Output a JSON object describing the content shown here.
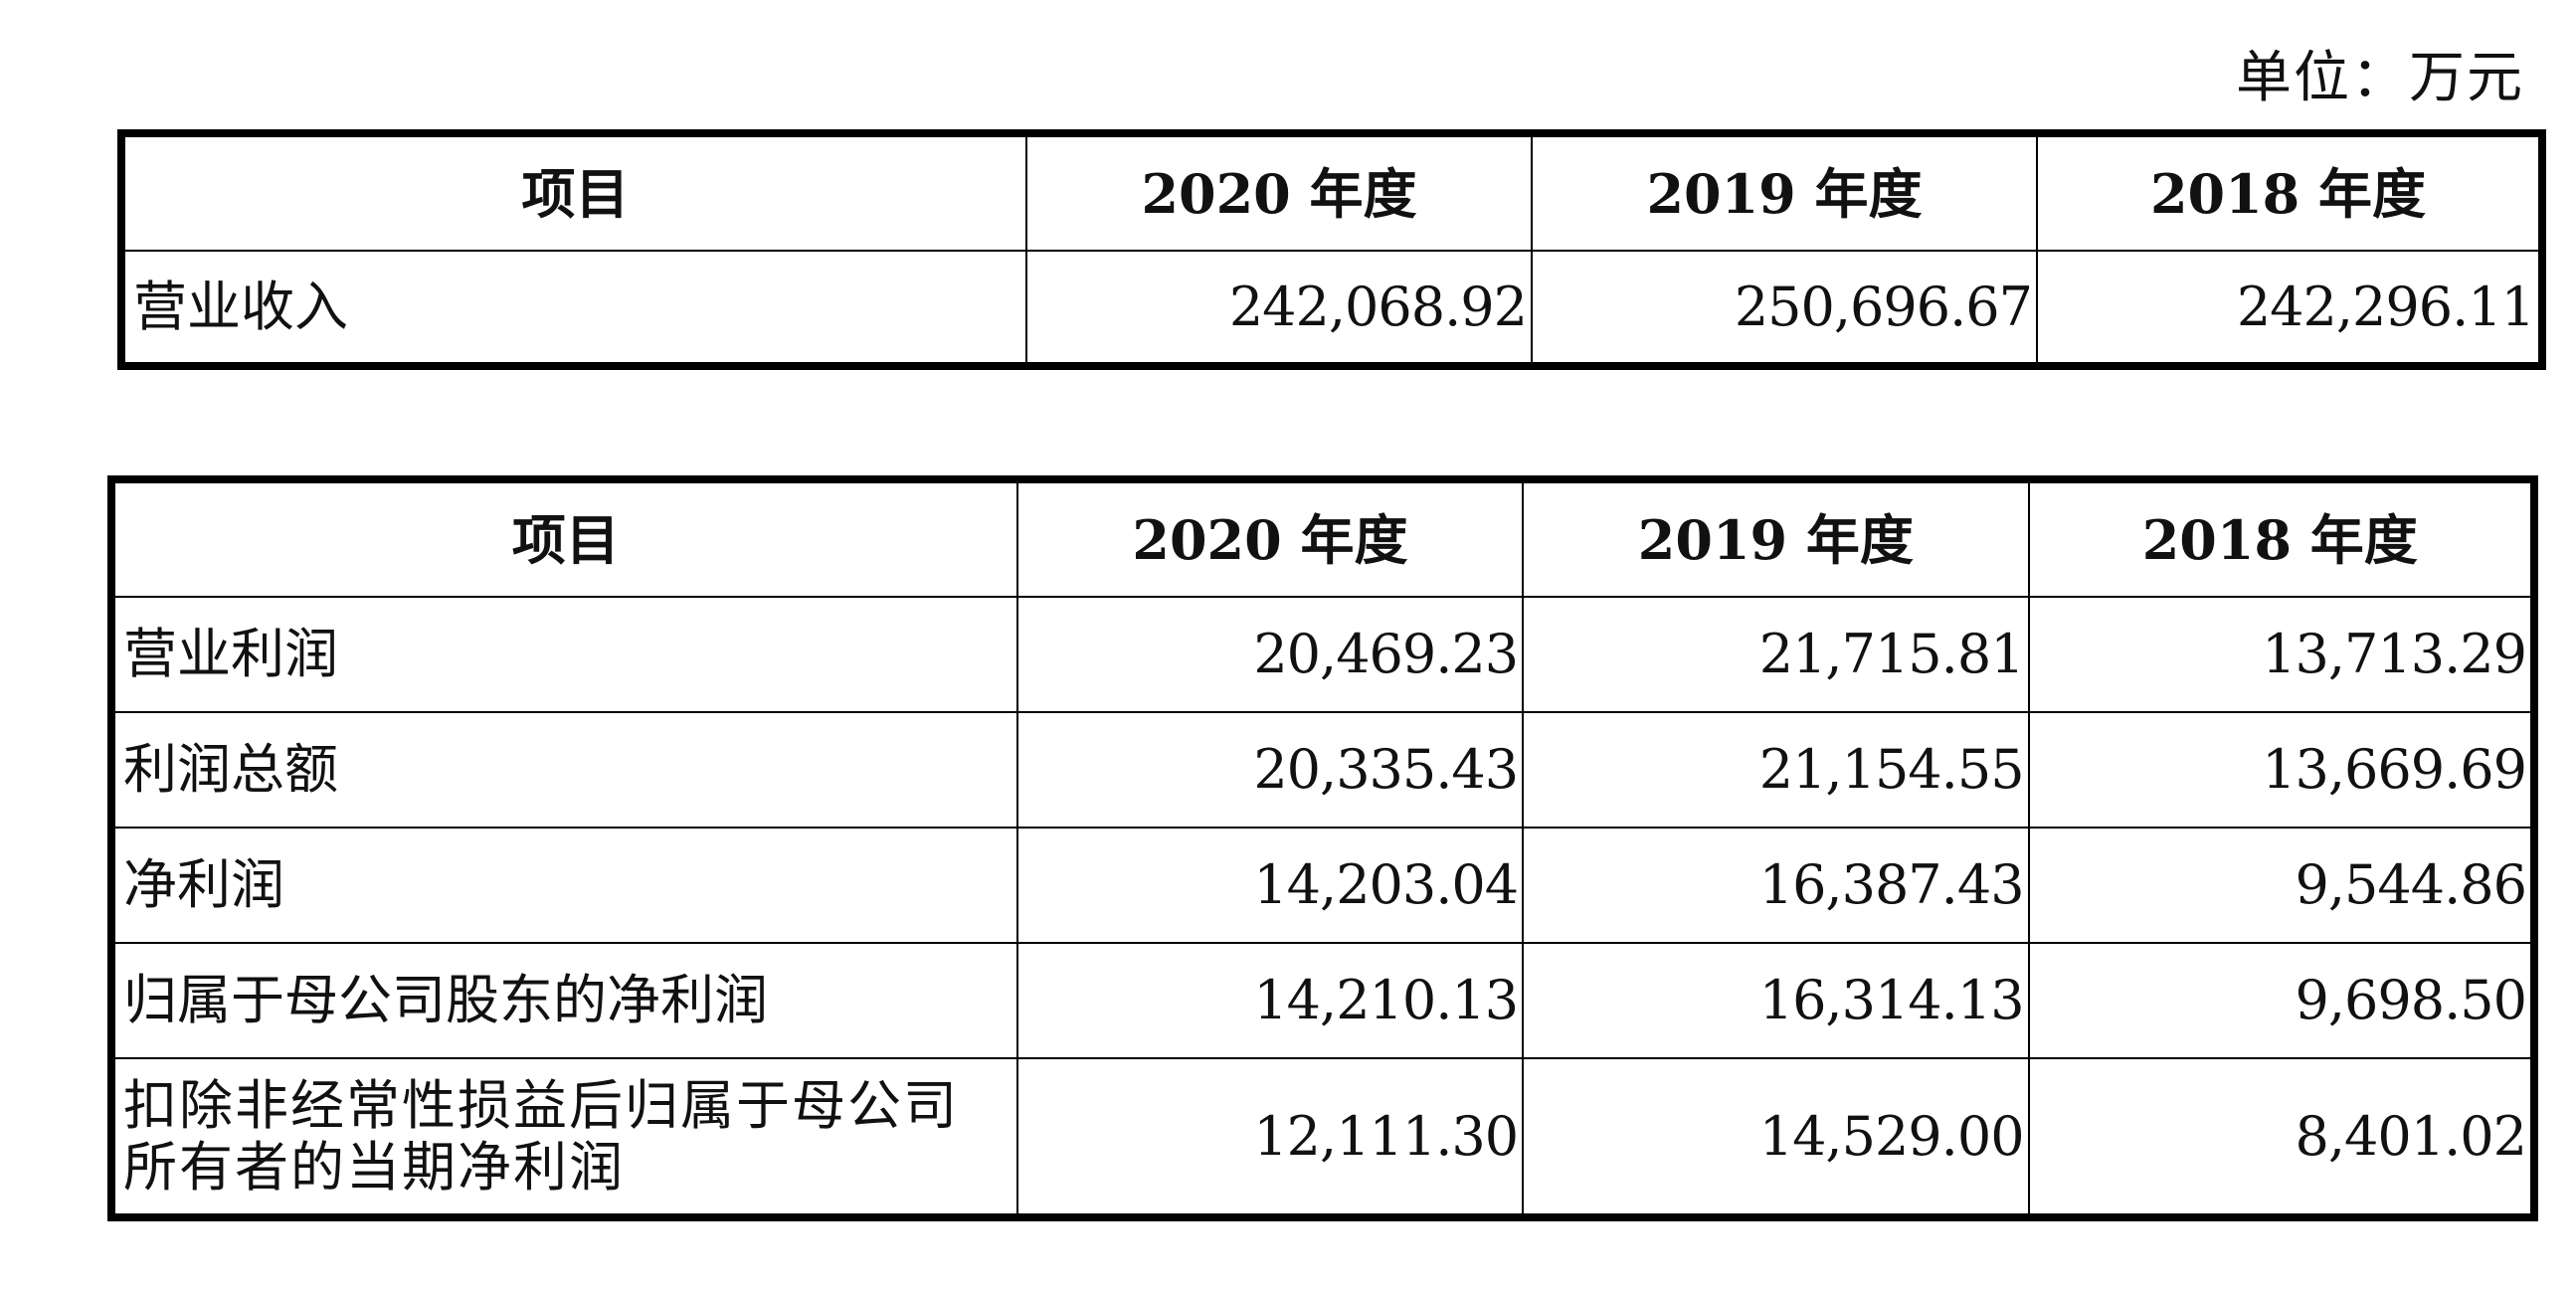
{
  "unit_label": "单位：万元",
  "revenue_table": {
    "headers": [
      "项目",
      "2020 年度",
      "2019 年度",
      "2018 年度"
    ],
    "rows": [
      {
        "item": "营业收入",
        "y2020": "242,068.92",
        "y2019": "250,696.67",
        "y2018": "242,296.11"
      }
    ]
  },
  "profit_table": {
    "headers": [
      "项目",
      "2020 年度",
      "2019 年度",
      "2018 年度"
    ],
    "rows": [
      {
        "item": "营业利润",
        "y2020": "20,469.23",
        "y2019": "21,715.81",
        "y2018": "13,713.29"
      },
      {
        "item": "利润总额",
        "y2020": "20,335.43",
        "y2019": "21,154.55",
        "y2018": "13,669.69"
      },
      {
        "item": "净利润",
        "y2020": "14,203.04",
        "y2019": "16,387.43",
        "y2018": "9,544.86"
      },
      {
        "item": "归属于母公司股东的净利润",
        "y2020": "14,210.13",
        "y2019": "16,314.13",
        "y2018": "9,698.50"
      },
      {
        "item": "扣除非经常性损益后归属于母公司所有者的当期净利润",
        "y2020": "12,111.30",
        "y2019": "14,529.00",
        "y2018": "8,401.02"
      }
    ]
  }
}
